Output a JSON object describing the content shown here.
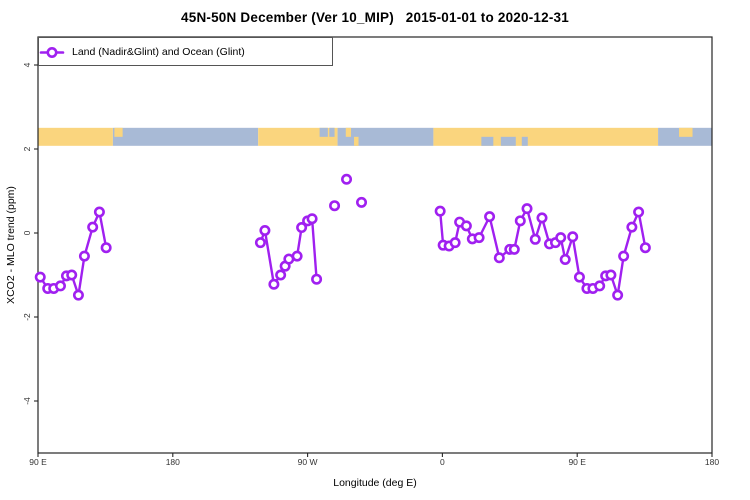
{
  "header": {
    "title": "45N-50N December (Ver 10_MIP)   2015-01-01 to 2020-12-31"
  },
  "legend": {
    "label": "Land (Nadir&Glint) and Ocean (Glint)",
    "marker": "open-circle-on-line"
  },
  "colors": {
    "series": "#A020F0",
    "land": "#FAD57E",
    "ocean": "#A8BAD6",
    "axis": "#262626",
    "tick_text": "#333333"
  },
  "chart_data": {
    "type": "line",
    "title": "45N-50N December (Ver 10_MIP)   2015-01-01 to 2020-12-31",
    "xlabel": "Longitude (deg E)",
    "ylabel": "XCO2 - MLO trend (ppm)",
    "grid": false,
    "legend_position": "top-left",
    "x_axis": {
      "range_deg_east": [
        90,
        540
      ],
      "ticks": [
        {
          "value": 90,
          "label": "90 E"
        },
        {
          "value": 180,
          "label": "180"
        },
        {
          "value": 270,
          "label": "90 W"
        },
        {
          "value": 360,
          "label": "0"
        },
        {
          "value": 450,
          "label": "90 E"
        },
        {
          "value": 540,
          "label": "180"
        }
      ]
    },
    "y_axis": {
      "range": [
        -5,
        4.7
      ],
      "ticks": [
        {
          "value": -4,
          "label": "-4"
        },
        {
          "value": -2,
          "label": "-2"
        },
        {
          "value": 0,
          "label": "0"
        },
        {
          "value": 2,
          "label": "2"
        },
        {
          "value": 4,
          "label": "4"
        }
      ]
    },
    "series": [
      {
        "name": "Land (Nadir&Glint) and Ocean (Glint)",
        "color": "#A020F0",
        "marker": "open-circle",
        "segments": [
          [
            [
              91.5,
              -1.05
            ],
            [
              96.5,
              -1.32
            ],
            [
              100.5,
              -1.32
            ],
            [
              105,
              -1.26
            ],
            [
              109,
              -1.02
            ],
            [
              112.5,
              -1.0
            ],
            [
              117,
              -1.48
            ],
            [
              121,
              -0.55
            ],
            [
              126.5,
              0.14
            ],
            [
              131,
              0.5
            ],
            [
              135.5,
              -0.35
            ]
          ],
          [
            [
              238.5,
              -0.23
            ],
            [
              241.5,
              0.06
            ],
            [
              247.5,
              -1.22
            ],
            [
              252,
              -1.0
            ],
            [
              255,
              -0.79
            ],
            [
              257.5,
              -0.62
            ],
            [
              263,
              -0.55
            ],
            [
              266,
              0.13
            ],
            [
              270,
              0.29
            ],
            [
              273,
              0.34
            ],
            [
              276,
              -1.1
            ]
          ],
          [
            [
              358.5,
              0.52
            ],
            [
              360.5,
              -0.29
            ],
            [
              364.5,
              -0.31
            ],
            [
              368.5,
              -0.23
            ],
            [
              371.5,
              0.26
            ],
            [
              376,
              0.17
            ],
            [
              380,
              -0.14
            ],
            [
              384.5,
              -0.11
            ],
            [
              391.5,
              0.39
            ],
            [
              398,
              -0.59
            ],
            [
              405,
              -0.39
            ],
            [
              408,
              -0.39
            ],
            [
              412,
              0.29
            ],
            [
              416.5,
              0.58
            ],
            [
              422,
              -0.15
            ],
            [
              426.5,
              0.36
            ],
            [
              431.5,
              -0.26
            ],
            [
              435.5,
              -0.23
            ],
            [
              439,
              -0.11
            ],
            [
              442,
              -0.63
            ],
            [
              447,
              -0.09
            ],
            [
              451.5,
              -1.05
            ],
            [
              456.5,
              -1.32
            ],
            [
              460.5,
              -1.32
            ],
            [
              465,
              -1.26
            ],
            [
              469,
              -1.02
            ],
            [
              472.5,
              -1.0
            ],
            [
              477,
              -1.48
            ],
            [
              481,
              -0.55
            ],
            [
              486.5,
              0.14
            ],
            [
              491,
              0.5
            ],
            [
              495.5,
              -0.35
            ]
          ]
        ],
        "isolated_points": [
          [
            288,
            0.65
          ],
          [
            296,
            1.28
          ],
          [
            306,
            0.73
          ]
        ]
      }
    ],
    "map_strip": {
      "center_value": 2.29,
      "land_color": "#FAD57E",
      "ocean_color": "#A8BAD6",
      "segments": [
        {
          "from": 90,
          "to": 140,
          "surface": "land"
        },
        {
          "from": 140,
          "to": 237,
          "surface": "ocean"
        },
        {
          "from": 237,
          "to": 290,
          "surface": "land"
        },
        {
          "from": 290,
          "to": 354,
          "surface": "ocean"
        },
        {
          "from": 354,
          "to": 504,
          "surface": "land"
        },
        {
          "from": 504,
          "to": 540,
          "surface": "ocean"
        }
      ],
      "details": [
        {
          "from": 141,
          "to": 146.5,
          "surface": "land",
          "part": "top"
        },
        {
          "from": 278,
          "to": 283.5,
          "surface": "ocean",
          "part": "top"
        },
        {
          "from": 284.5,
          "to": 288,
          "surface": "ocean",
          "part": "top"
        },
        {
          "from": 295.5,
          "to": 299,
          "surface": "land",
          "part": "top"
        },
        {
          "from": 301,
          "to": 304,
          "surface": "land",
          "part": "bottom"
        },
        {
          "from": 386,
          "to": 394,
          "surface": "ocean",
          "part": "bottom"
        },
        {
          "from": 399,
          "to": 409,
          "surface": "ocean",
          "part": "bottom"
        },
        {
          "from": 413,
          "to": 417,
          "surface": "ocean",
          "part": "bottom"
        },
        {
          "from": 518,
          "to": 527,
          "surface": "land",
          "part": "top"
        }
      ]
    }
  }
}
